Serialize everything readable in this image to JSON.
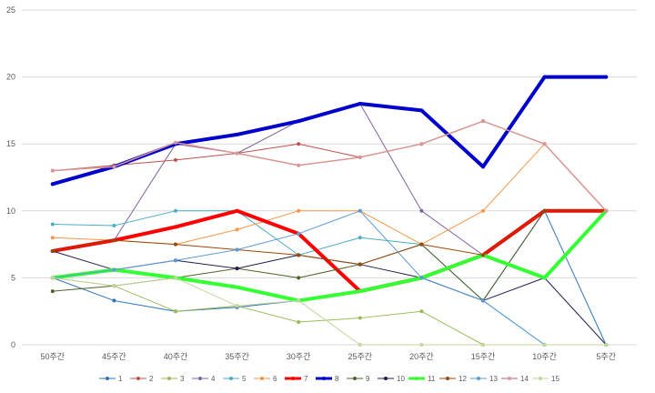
{
  "chart_data": {
    "type": "line",
    "categories": [
      "50주간",
      "45주간",
      "40주간",
      "35주간",
      "30주간",
      "25주간",
      "20주간",
      "15주간",
      "10주간",
      "5주간"
    ],
    "ylim": [
      0,
      25
    ],
    "yticks": [
      0,
      5,
      10,
      15,
      20,
      25
    ],
    "grid": "horizontal",
    "legend_position": "bottom",
    "series": [
      {
        "name": "1",
        "color": "#2e75b6",
        "width": 1,
        "values": [
          5,
          3.3,
          2.5,
          2.8,
          3.3,
          4,
          5,
          3.3,
          10,
          0
        ]
      },
      {
        "name": "2",
        "color": "#c0504d",
        "width": 1,
        "values": [
          13,
          13.4,
          13.8,
          14.3,
          15,
          14,
          15,
          16.7,
          15,
          10
        ]
      },
      {
        "name": "3",
        "color": "#9bbb59",
        "width": 1,
        "values": [
          5,
          4.4,
          2.5,
          2.9,
          1.7,
          2,
          2.5,
          0,
          0,
          0
        ]
      },
      {
        "name": "4",
        "color": "#8064a2",
        "width": 1,
        "values": [
          7,
          7.8,
          15,
          14.3,
          16.7,
          18,
          10,
          6.7,
          5,
          10
        ]
      },
      {
        "name": "5",
        "color": "#4bacc6",
        "width": 1,
        "values": [
          9,
          8.9,
          10,
          10,
          6.7,
          8,
          7.5,
          3.3,
          0,
          0
        ]
      },
      {
        "name": "6",
        "color": "#f79646",
        "width": 1,
        "values": [
          8,
          7.8,
          7.5,
          8.6,
          10,
          10,
          7.5,
          10,
          15,
          10
        ]
      },
      {
        "name": "7",
        "color": "#ff0000",
        "width": 4,
        "values": [
          7,
          7.8,
          8.8,
          10,
          8.3,
          4,
          5,
          6.7,
          10,
          10
        ]
      },
      {
        "name": "8",
        "color": "#0000cc",
        "width": 4,
        "values": [
          12,
          13.3,
          15,
          15.7,
          16.7,
          18,
          17.5,
          13.3,
          20,
          20
        ]
      },
      {
        "name": "9",
        "color": "#4f6228",
        "width": 1,
        "values": [
          4,
          4.4,
          5,
          5.7,
          5,
          6,
          7.5,
          3.3,
          10,
          10
        ]
      },
      {
        "name": "10",
        "color": "#1f1f4e",
        "width": 1,
        "values": [
          7,
          5.6,
          6.3,
          5.7,
          6.7,
          6,
          5,
          3.3,
          5,
          0
        ]
      },
      {
        "name": "11",
        "color": "#33ff33",
        "width": 4,
        "values": [
          5,
          5.6,
          5,
          4.3,
          3.3,
          4,
          5,
          6.7,
          5,
          10
        ]
      },
      {
        "name": "12",
        "color": "#984807",
        "width": 1,
        "values": [
          7,
          7.8,
          7.5,
          7.1,
          6.7,
          6,
          7.5,
          6.7,
          10,
          10
        ]
      },
      {
        "name": "13",
        "color": "#5b9bd5",
        "width": 1,
        "values": [
          5,
          5.6,
          6.3,
          7.1,
          8.3,
          10,
          5,
          3.3,
          0,
          0
        ]
      },
      {
        "name": "14",
        "color": "#d99694",
        "width": 1.5,
        "values": [
          13,
          13.3,
          15.1,
          14.3,
          13.4,
          14,
          15,
          16.7,
          15,
          10
        ]
      },
      {
        "name": "15",
        "color": "#c3d69b",
        "width": 1,
        "values": [
          5,
          4.4,
          5,
          2.9,
          3.3,
          0,
          0,
          0,
          0,
          0
        ]
      }
    ]
  }
}
